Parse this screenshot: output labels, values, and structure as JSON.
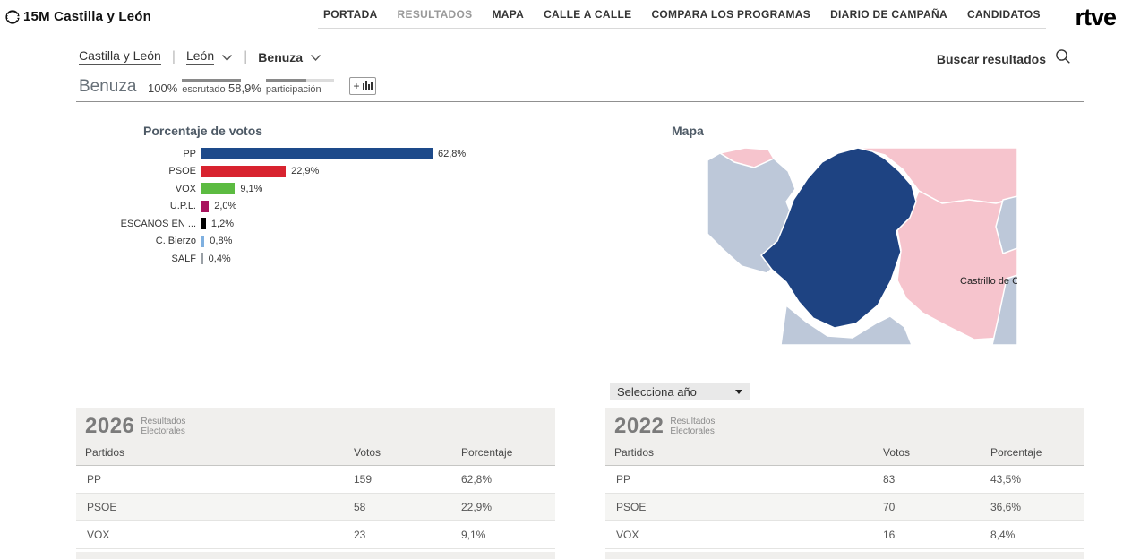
{
  "header": {
    "logo": {
      "brand": "15M",
      "region": "Castilla y León"
    },
    "nav": [
      {
        "label": "PORTADA",
        "active": false
      },
      {
        "label": "RESULTADOS",
        "active": true
      },
      {
        "label": "MAPA",
        "active": false
      },
      {
        "label": "CALLE A CALLE",
        "active": false
      },
      {
        "label": "COMPARA LOS PROGRAMAS",
        "active": false
      },
      {
        "label": "DIARIO DE CAMPAÑA",
        "active": false
      },
      {
        "label": "CANDIDATOS",
        "active": false
      }
    ],
    "rtve": "rtve"
  },
  "breadcrumb": {
    "items": [
      {
        "label": "Castilla y León",
        "underline": true,
        "bold": false,
        "has_chevron": false
      },
      {
        "label": "León",
        "underline": true,
        "bold": false,
        "has_chevron": true
      },
      {
        "label": "Benuza",
        "underline": false,
        "bold": true,
        "has_chevron": true
      }
    ]
  },
  "search": {
    "label": "Buscar resultados"
  },
  "title_bar": {
    "title": "Benuza",
    "escrutado_pct": "100%",
    "escrutado_label": "escrutado",
    "escrutado_fill": 100,
    "participacion_pct": "58,9%",
    "participacion_label": "participación",
    "participacion_fill": 58.9,
    "add_chart_plus": "+"
  },
  "chart_data": {
    "type": "bar",
    "orientation": "horizontal",
    "title": "Porcentaje de votos",
    "categories": [
      "PP",
      "PSOE",
      "VOX",
      "U.P.L.",
      "ESCAÑOS EN ...",
      "C. Bierzo",
      "SALF"
    ],
    "values": [
      62.8,
      22.9,
      9.1,
      2.0,
      1.2,
      0.8,
      0.4
    ],
    "value_labels": [
      "62,8%",
      "22,9%",
      "9,1%",
      "2,0%",
      "1,2%",
      "0,8%",
      "0,4%"
    ],
    "colors": [
      "#1d4a8a",
      "#d8232f",
      "#5cbb41",
      "#a8135d",
      "#000000",
      "#7fb0e0",
      "#9aa0a6"
    ],
    "xlim": [
      0,
      100
    ],
    "grid": false,
    "legend": false
  },
  "map": {
    "title": "Mapa",
    "region_label": "Castrillo de Cabr",
    "colors": {
      "winner_blue": "#1e4382",
      "pink": "#f6c4cd",
      "gray_blue": "#bdc8d9",
      "border": "#ffffff"
    }
  },
  "year_select": {
    "value": "Selecciona año"
  },
  "tables": [
    {
      "year": "2026",
      "subtitle_line1": "Resultados",
      "subtitle_line2": "Electorales",
      "columns": [
        "Partidos",
        "Votos",
        "Porcentaje"
      ],
      "rows": [
        [
          "PP",
          "159",
          "62,8%"
        ],
        [
          "PSOE",
          "58",
          "22,9%"
        ],
        [
          "VOX",
          "23",
          "9,1%"
        ]
      ]
    },
    {
      "year": "2022",
      "subtitle_line1": "Resultados",
      "subtitle_line2": "Electorales",
      "columns": [
        "Partidos",
        "Votos",
        "Porcentaje"
      ],
      "rows": [
        [
          "PP",
          "83",
          "43,5%"
        ],
        [
          "PSOE",
          "70",
          "36,6%"
        ],
        [
          "VOX",
          "16",
          "8,4%"
        ]
      ]
    }
  ]
}
